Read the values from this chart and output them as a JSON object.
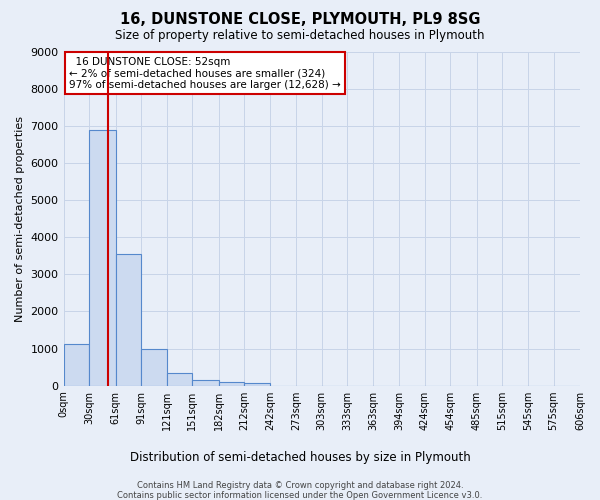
{
  "title": "16, DUNSTONE CLOSE, PLYMOUTH, PL9 8SG",
  "subtitle": "Size of property relative to semi-detached houses in Plymouth",
  "xlabel": "Distribution of semi-detached houses by size in Plymouth",
  "ylabel": "Number of semi-detached properties",
  "footnote1": "Contains HM Land Registry data © Crown copyright and database right 2024.",
  "footnote2": "Contains public sector information licensed under the Open Government Licence v3.0.",
  "annotation_title": "16 DUNSTONE CLOSE: 52sqm",
  "annotation_line1": "← 2% of semi-detached houses are smaller (324)",
  "annotation_line2": "97% of semi-detached houses are larger (12,628) →",
  "property_size": 52,
  "bar_edges": [
    0,
    30,
    61,
    91,
    121,
    151,
    182,
    212,
    242,
    273,
    303,
    333,
    363,
    394,
    424,
    454,
    485,
    515,
    545,
    575,
    606
  ],
  "bar_heights": [
    1120,
    6880,
    3550,
    980,
    330,
    140,
    110,
    80,
    0,
    0,
    0,
    0,
    0,
    0,
    0,
    0,
    0,
    0,
    0,
    0
  ],
  "bar_color": "#ccdaf0",
  "bar_edge_color": "#5588cc",
  "red_line_color": "#cc0000",
  "annotation_box_color": "#ffffff",
  "annotation_box_edge": "#cc0000",
  "grid_color": "#c8d4e8",
  "background_color": "#e8eef8",
  "ylim": [
    0,
    9000
  ],
  "yticks": [
    0,
    1000,
    2000,
    3000,
    4000,
    5000,
    6000,
    7000,
    8000,
    9000
  ]
}
